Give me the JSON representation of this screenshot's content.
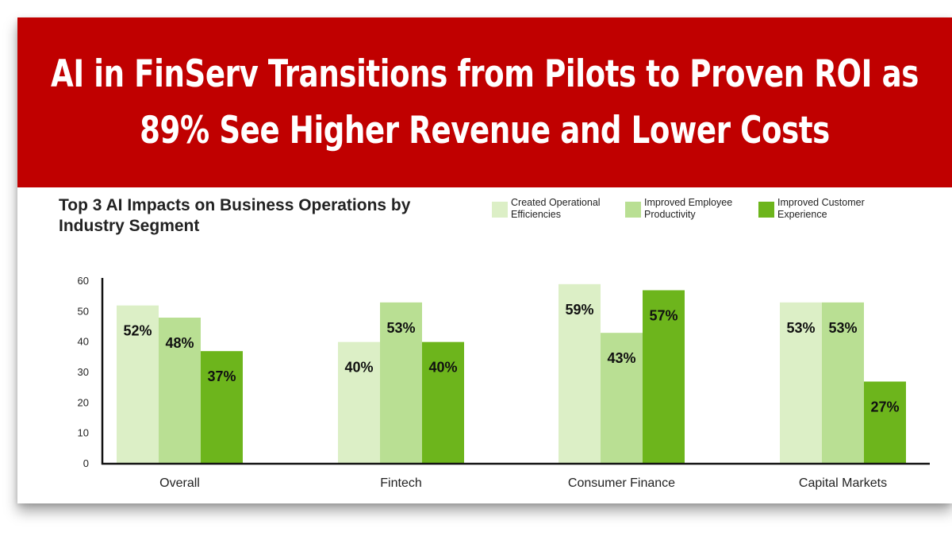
{
  "headline": "AI in FinServ Transitions from Pilots to Proven ROI as 89% See Higher Revenue and Lower Costs",
  "colors": {
    "banner": "#c00000",
    "series": [
      "#dcefc6",
      "#b9df93",
      "#6db51c"
    ]
  },
  "chart_data": {
    "type": "bar",
    "title": "Top 3 AI Impacts on Business Operations by Industry Segment",
    "xlabel": "",
    "ylabel": "",
    "ylim": [
      0,
      60
    ],
    "yticks": [
      0,
      10,
      20,
      30,
      40,
      50,
      60
    ],
    "categories": [
      "Overall",
      "Fintech",
      "Consumer Finance",
      "Capital Markets"
    ],
    "legend_position": "top-right",
    "grid": false,
    "series": [
      {
        "name": "Created Operational Efficiencies",
        "values": [
          52,
          40,
          59,
          53
        ],
        "labels": [
          "52%",
          "40%",
          "59%",
          "53%"
        ]
      },
      {
        "name": "Improved Employee Productivity",
        "values": [
          48,
          53,
          43,
          53
        ],
        "labels": [
          "48%",
          "53%",
          "43%",
          "53%"
        ]
      },
      {
        "name": "Improved Customer Experience",
        "values": [
          37,
          40,
          57,
          27
        ],
        "labels": [
          "37%",
          "40%",
          "57%",
          "27%"
        ]
      }
    ]
  }
}
